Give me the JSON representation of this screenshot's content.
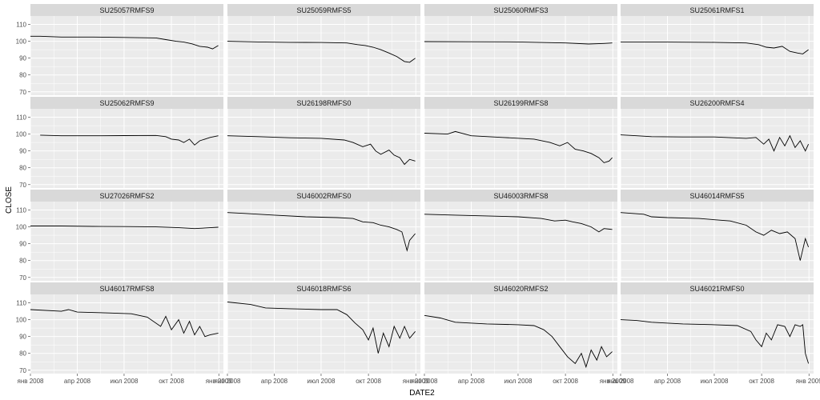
{
  "chart_data": {
    "type": "line",
    "layout": "facet_wrap 4x4",
    "xlabel": "DATE2",
    "ylabel": "CLOSE",
    "xlim": [
      "2008-01-01",
      "2009-01-10"
    ],
    "ylim": [
      68,
      115
    ],
    "x_ticks": [
      "2008-01-01",
      "2008-04-01",
      "2008-07-01",
      "2008-10-01",
      "2009-01-01"
    ],
    "x_tick_labels": [
      "янв 2008",
      "апр 2008",
      "июл 2008",
      "окт 2008",
      "янв 2009"
    ],
    "y_ticks": [
      70,
      80,
      90,
      100,
      110
    ],
    "y_tick_labels": [
      "70",
      "80",
      "90",
      "100",
      "110"
    ],
    "grid": true,
    "colors": {
      "panel_bg": "#ebebeb",
      "strip_bg": "#d9d9d9",
      "grid": "#ffffff",
      "line": "#000000"
    },
    "series": [
      {
        "name": "SU25057RMFS9",
        "points": [
          [
            "2008-01-01",
            103
          ],
          [
            "2008-01-20",
            103
          ],
          [
            "2008-03-01",
            102.5
          ],
          [
            "2008-05-01",
            102.5
          ],
          [
            "2008-07-01",
            102.3
          ],
          [
            "2008-09-01",
            102
          ],
          [
            "2008-09-20",
            101
          ],
          [
            "2008-10-10",
            100
          ],
          [
            "2008-10-25",
            99.5
          ],
          [
            "2008-11-10",
            98.5
          ],
          [
            "2008-11-25",
            97
          ],
          [
            "2008-12-10",
            96.5
          ],
          [
            "2008-12-20",
            95.5
          ],
          [
            "2008-12-31",
            97.5
          ]
        ]
      },
      {
        "name": "SU25059RMFS5",
        "points": [
          [
            "2008-01-01",
            100
          ],
          [
            "2008-03-01",
            99.6
          ],
          [
            "2008-05-01",
            99.4
          ],
          [
            "2008-07-01",
            99.3
          ],
          [
            "2008-08-20",
            99
          ],
          [
            "2008-09-10",
            98
          ],
          [
            "2008-09-25",
            97.5
          ],
          [
            "2008-10-10",
            96.5
          ],
          [
            "2008-10-25",
            95
          ],
          [
            "2008-11-10",
            93
          ],
          [
            "2008-11-25",
            91
          ],
          [
            "2008-12-10",
            88
          ],
          [
            "2008-12-20",
            87.5
          ],
          [
            "2008-12-31",
            90
          ]
        ]
      },
      {
        "name": "SU25060RMFS3",
        "points": [
          [
            "2008-01-01",
            99.8
          ],
          [
            "2008-04-01",
            99.7
          ],
          [
            "2008-07-01",
            99.6
          ],
          [
            "2008-10-01",
            99
          ],
          [
            "2008-11-15",
            98.4
          ],
          [
            "2008-12-15",
            98.7
          ],
          [
            "2008-12-31",
            99
          ]
        ]
      },
      {
        "name": "SU25061RMFS1",
        "points": [
          [
            "2008-01-01",
            99.5
          ],
          [
            "2008-04-01",
            99.5
          ],
          [
            "2008-07-01",
            99.4
          ],
          [
            "2008-09-01",
            99
          ],
          [
            "2008-09-25",
            98
          ],
          [
            "2008-10-10",
            96.5
          ],
          [
            "2008-10-25",
            96
          ],
          [
            "2008-11-10",
            97
          ],
          [
            "2008-11-25",
            94
          ],
          [
            "2008-12-10",
            93
          ],
          [
            "2008-12-20",
            92.5
          ],
          [
            "2008-12-31",
            95
          ]
        ]
      },
      {
        "name": "SU25062RMFS9",
        "points": [
          [
            "2008-01-20",
            99.4
          ],
          [
            "2008-03-01",
            99
          ],
          [
            "2008-05-01",
            99
          ],
          [
            "2008-07-01",
            99.1
          ],
          [
            "2008-09-01",
            99.2
          ],
          [
            "2008-09-20",
            98.5
          ],
          [
            "2008-10-01",
            97
          ],
          [
            "2008-10-15",
            96.5
          ],
          [
            "2008-10-25",
            95
          ],
          [
            "2008-11-05",
            97
          ],
          [
            "2008-11-15",
            93.5
          ],
          [
            "2008-11-25",
            96
          ],
          [
            "2008-12-05",
            97
          ],
          [
            "2008-12-15",
            98
          ],
          [
            "2008-12-31",
            99
          ]
        ]
      },
      {
        "name": "SU26198RMFS0",
        "points": [
          [
            "2008-01-01",
            99
          ],
          [
            "2008-03-01",
            98.5
          ],
          [
            "2008-05-01",
            97.8
          ],
          [
            "2008-07-01",
            97.5
          ],
          [
            "2008-08-15",
            96.5
          ],
          [
            "2008-09-01",
            95
          ],
          [
            "2008-09-20",
            92.5
          ],
          [
            "2008-10-05",
            94
          ],
          [
            "2008-10-15",
            90
          ],
          [
            "2008-10-25",
            88
          ],
          [
            "2008-11-10",
            90.5
          ],
          [
            "2008-11-20",
            87.5
          ],
          [
            "2008-12-01",
            86
          ],
          [
            "2008-12-10",
            82
          ],
          [
            "2008-12-20",
            85
          ],
          [
            "2008-12-31",
            84
          ]
        ]
      },
      {
        "name": "SU26199RMFS8",
        "points": [
          [
            "2008-01-01",
            100.5
          ],
          [
            "2008-02-15",
            100
          ],
          [
            "2008-03-01",
            101.5
          ],
          [
            "2008-04-01",
            99
          ],
          [
            "2008-06-01",
            98
          ],
          [
            "2008-08-01",
            97
          ],
          [
            "2008-09-01",
            95
          ],
          [
            "2008-09-20",
            93
          ],
          [
            "2008-10-05",
            95
          ],
          [
            "2008-10-20",
            91
          ],
          [
            "2008-11-05",
            90
          ],
          [
            "2008-11-20",
            88.5
          ],
          [
            "2008-12-05",
            86
          ],
          [
            "2008-12-15",
            83
          ],
          [
            "2008-12-25",
            84
          ],
          [
            "2008-12-31",
            86
          ]
        ]
      },
      {
        "name": "SU26200RMFS4",
        "points": [
          [
            "2008-01-01",
            99.5
          ],
          [
            "2008-02-01",
            99
          ],
          [
            "2008-03-01",
            98.5
          ],
          [
            "2008-05-01",
            98.3
          ],
          [
            "2008-07-01",
            98.3
          ],
          [
            "2008-09-01",
            97.5
          ],
          [
            "2008-09-20",
            98
          ],
          [
            "2008-10-05",
            94
          ],
          [
            "2008-10-15",
            97
          ],
          [
            "2008-10-25",
            90
          ],
          [
            "2008-11-05",
            98
          ],
          [
            "2008-11-15",
            93
          ],
          [
            "2008-11-25",
            99
          ],
          [
            "2008-12-05",
            92
          ],
          [
            "2008-12-15",
            96
          ],
          [
            "2008-12-25",
            90
          ],
          [
            "2008-12-31",
            94
          ]
        ]
      },
      {
        "name": "SU27026RMFS2",
        "points": [
          [
            "2008-01-01",
            100.5
          ],
          [
            "2008-03-01",
            100.5
          ],
          [
            "2008-05-01",
            100.3
          ],
          [
            "2008-07-01",
            100.2
          ],
          [
            "2008-09-01",
            100
          ],
          [
            "2008-10-15",
            99.5
          ],
          [
            "2008-11-15",
            99
          ],
          [
            "2008-12-15",
            99.5
          ],
          [
            "2008-12-31",
            99.8
          ]
        ]
      },
      {
        "name": "SU46002RMFS0",
        "points": [
          [
            "2008-01-01",
            108.5
          ],
          [
            "2008-02-01",
            108
          ],
          [
            "2008-04-01",
            107
          ],
          [
            "2008-06-01",
            106
          ],
          [
            "2008-08-01",
            105.5
          ],
          [
            "2008-09-01",
            105
          ],
          [
            "2008-09-20",
            103
          ],
          [
            "2008-10-10",
            102.5
          ],
          [
            "2008-10-25",
            101
          ],
          [
            "2008-11-10",
            100
          ],
          [
            "2008-11-25",
            98.5
          ],
          [
            "2008-12-05",
            97
          ],
          [
            "2008-12-15",
            86
          ],
          [
            "2008-12-20",
            92
          ],
          [
            "2008-12-31",
            96
          ]
        ]
      },
      {
        "name": "SU46003RMFS8",
        "points": [
          [
            "2008-01-01",
            107.5
          ],
          [
            "2008-03-01",
            107
          ],
          [
            "2008-05-01",
            106.5
          ],
          [
            "2008-07-01",
            106
          ],
          [
            "2008-08-15",
            105
          ],
          [
            "2008-09-10",
            103.5
          ],
          [
            "2008-10-01",
            104
          ],
          [
            "2008-10-15",
            103
          ],
          [
            "2008-11-01",
            102
          ],
          [
            "2008-11-20",
            100
          ],
          [
            "2008-12-05",
            97
          ],
          [
            "2008-12-15",
            99
          ],
          [
            "2008-12-31",
            98.5
          ]
        ]
      },
      {
        "name": "SU46014RMFS5",
        "points": [
          [
            "2008-01-01",
            108.5
          ],
          [
            "2008-02-15",
            107.5
          ],
          [
            "2008-03-01",
            106
          ],
          [
            "2008-04-01",
            105.5
          ],
          [
            "2008-06-01",
            105
          ],
          [
            "2008-08-01",
            103.5
          ],
          [
            "2008-09-01",
            101
          ],
          [
            "2008-09-20",
            97
          ],
          [
            "2008-10-05",
            95
          ],
          [
            "2008-10-20",
            98
          ],
          [
            "2008-11-05",
            96
          ],
          [
            "2008-11-20",
            97
          ],
          [
            "2008-12-05",
            93
          ],
          [
            "2008-12-15",
            80
          ],
          [
            "2008-12-25",
            93
          ],
          [
            "2008-12-31",
            88
          ]
        ]
      },
      {
        "name": "SU46017RMFS8",
        "points": [
          [
            "2008-01-01",
            106
          ],
          [
            "2008-03-01",
            105
          ],
          [
            "2008-03-15",
            106
          ],
          [
            "2008-04-01",
            104.5
          ],
          [
            "2008-06-01",
            104
          ],
          [
            "2008-07-15",
            103.5
          ],
          [
            "2008-08-15",
            101.5
          ],
          [
            "2008-09-10",
            96
          ],
          [
            "2008-09-20",
            102
          ],
          [
            "2008-10-01",
            94
          ],
          [
            "2008-10-15",
            100
          ],
          [
            "2008-10-25",
            92
          ],
          [
            "2008-11-05",
            99
          ],
          [
            "2008-11-15",
            91
          ],
          [
            "2008-11-25",
            96
          ],
          [
            "2008-12-05",
            90
          ],
          [
            "2008-12-15",
            91
          ],
          [
            "2008-12-31",
            92
          ]
        ]
      },
      {
        "name": "SU46018RMFS6",
        "points": [
          [
            "2008-01-01",
            110.5
          ],
          [
            "2008-02-15",
            109
          ],
          [
            "2008-03-15",
            107
          ],
          [
            "2008-05-01",
            106.5
          ],
          [
            "2008-07-01",
            106
          ],
          [
            "2008-08-01",
            106
          ],
          [
            "2008-08-20",
            103
          ],
          [
            "2008-09-05",
            98
          ],
          [
            "2008-09-20",
            94
          ],
          [
            "2008-10-01",
            88
          ],
          [
            "2008-10-10",
            95
          ],
          [
            "2008-10-20",
            80
          ],
          [
            "2008-10-30",
            92
          ],
          [
            "2008-11-10",
            84
          ],
          [
            "2008-11-20",
            96
          ],
          [
            "2008-12-01",
            89
          ],
          [
            "2008-12-10",
            96
          ],
          [
            "2008-12-20",
            89
          ],
          [
            "2008-12-31",
            93
          ]
        ]
      },
      {
        "name": "SU46020RMFS2",
        "points": [
          [
            "2008-01-01",
            102.5
          ],
          [
            "2008-02-01",
            101
          ],
          [
            "2008-03-01",
            98.5
          ],
          [
            "2008-05-01",
            97.5
          ],
          [
            "2008-07-01",
            97
          ],
          [
            "2008-08-01",
            96.5
          ],
          [
            "2008-08-20",
            94
          ],
          [
            "2008-09-05",
            90
          ],
          [
            "2008-09-20",
            84
          ],
          [
            "2008-10-05",
            78
          ],
          [
            "2008-10-20",
            74
          ],
          [
            "2008-11-01",
            80
          ],
          [
            "2008-11-10",
            72
          ],
          [
            "2008-11-20",
            82
          ],
          [
            "2008-12-01",
            76
          ],
          [
            "2008-12-10",
            84
          ],
          [
            "2008-12-20",
            78
          ],
          [
            "2008-12-31",
            81
          ]
        ]
      },
      {
        "name": "SU46021RMFS0",
        "points": [
          [
            "2008-01-01",
            100
          ],
          [
            "2008-02-01",
            99.5
          ],
          [
            "2008-03-01",
            98.5
          ],
          [
            "2008-05-01",
            97.5
          ],
          [
            "2008-07-01",
            97
          ],
          [
            "2008-08-15",
            96.5
          ],
          [
            "2008-09-10",
            93
          ],
          [
            "2008-09-20",
            88
          ],
          [
            "2008-10-01",
            84
          ],
          [
            "2008-10-10",
            92
          ],
          [
            "2008-10-20",
            88
          ],
          [
            "2008-11-01",
            97
          ],
          [
            "2008-11-15",
            96
          ],
          [
            "2008-11-25",
            90
          ],
          [
            "2008-12-05",
            97
          ],
          [
            "2008-12-15",
            96
          ],
          [
            "2008-12-20",
            97
          ],
          [
            "2008-12-25",
            80
          ],
          [
            "2008-12-31",
            74
          ]
        ]
      }
    ]
  }
}
